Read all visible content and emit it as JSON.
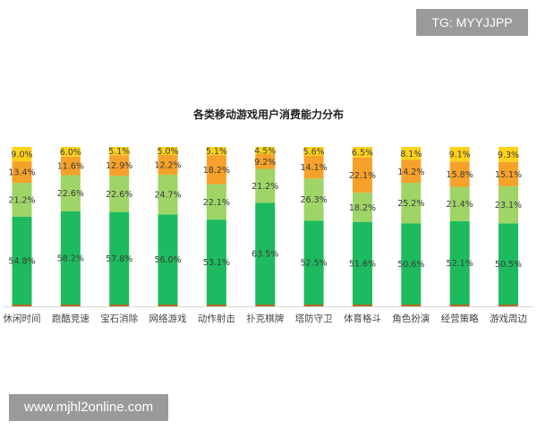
{
  "watermarks": {
    "top_right": "TG: MYYJJPP",
    "bottom_left": "www.mjhl2online.com"
  },
  "chart_data": {
    "type": "bar",
    "stacked": true,
    "title": "各类移动游戏用户消费能力分布",
    "xlabel": "",
    "ylabel": "",
    "ylim": [
      0,
      100
    ],
    "grid": false,
    "legend": "none",
    "categories": [
      "休闲时间",
      "跑酷竞速",
      "宝石消除",
      "网络游戏",
      "动作射击",
      "扑克棋牌",
      "塔防守卫",
      "体育格斗",
      "角色扮演",
      "经营策略",
      "游戏周边"
    ],
    "series": [
      {
        "color": "#1dbb5d",
        "values": [
          54.8,
          58.2,
          57.8,
          56.0,
          53.1,
          63.5,
          52.5,
          51.6,
          50.6,
          52.1,
          50.5
        ]
      },
      {
        "color": "#9fd466",
        "values": [
          21.2,
          22.6,
          22.6,
          24.7,
          22.1,
          21.2,
          26.3,
          18.2,
          25.2,
          21.4,
          23.1
        ]
      },
      {
        "color": "#f6a12a",
        "values": [
          13.4,
          11.6,
          12.9,
          12.2,
          18.2,
          9.2,
          14.1,
          22.1,
          14.2,
          15.8,
          15.1
        ]
      },
      {
        "color": "#ffd21a",
        "values": [
          9.0,
          6.0,
          5.1,
          5.0,
          5.1,
          4.5,
          5.6,
          6.5,
          8.1,
          9.1,
          9.3
        ]
      }
    ],
    "base_color": "#b06a1f"
  }
}
